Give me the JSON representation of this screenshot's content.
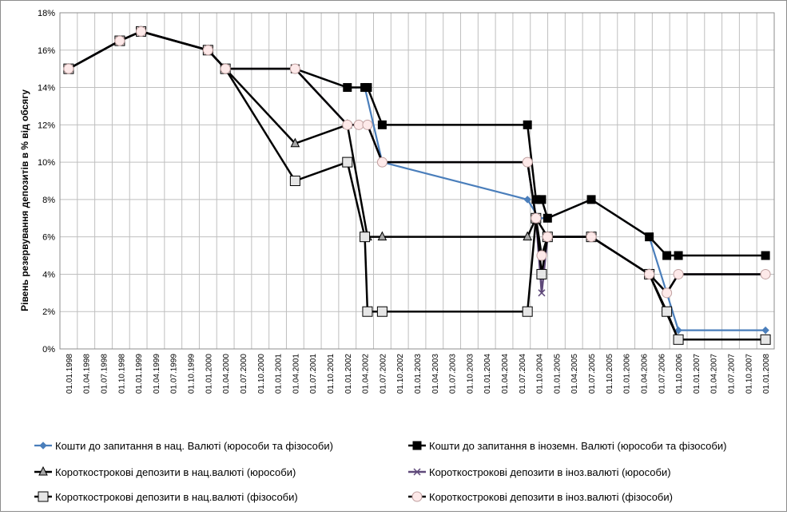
{
  "chart_data": {
    "type": "line",
    "ylabel": "Рівень резервування депозитів в % від обсягу",
    "ylim": [
      0,
      18
    ],
    "yticks": [
      "0%",
      "2%",
      "4%",
      "6%",
      "8%",
      "10%",
      "12%",
      "14%",
      "16%",
      "18%"
    ],
    "xticks": [
      "01.01.1998",
      "01.04.1998",
      "01.07.1998",
      "01.10.1998",
      "01.01.1999",
      "01.04.1999",
      "01.07.1999",
      "01.10.1999",
      "01.01.2000",
      "01.04.2000",
      "01.07.2000",
      "01.10.2000",
      "01.01.2001",
      "01.04.2001",
      "01.07.2001",
      "01.10.2001",
      "01.01.2002",
      "01.04.2002",
      "01.07.2002",
      "01.10.2002",
      "01.01.2003",
      "01.04.2003",
      "01.07.2003",
      "01.10.2003",
      "01.01.2004",
      "01.04.2004",
      "01.07.2004",
      "01.10.2004",
      "01.01.2005",
      "01.04.2005",
      "01.07.2005",
      "01.10.2005",
      "01.01.2006",
      "01.04.2006",
      "01.07.2006",
      "01.10.2006",
      "01.01.2007",
      "01.04.2007",
      "01.07.2007",
      "01.10.2007",
      "01.01.2008"
    ],
    "grid": true,
    "legend_position": "bottom",
    "series": [
      {
        "name": "Кошти до запитання в нац. Валюті (юрособи та фізособи)",
        "color": "#4a7ebb",
        "marker": "diamond",
        "points": [
          [
            "1998-01-01",
            15
          ],
          [
            "1998-09-25",
            16.5
          ],
          [
            "1999-01-15",
            17
          ],
          [
            "2000-01-01",
            16
          ],
          [
            "2000-04-01",
            15
          ],
          [
            "2001-04-01",
            15
          ],
          [
            "2002-01-01",
            14
          ],
          [
            "2002-04-01",
            14
          ],
          [
            "2002-07-01",
            10
          ],
          [
            "2004-08-01",
            8
          ],
          [
            "2004-10-01",
            7
          ],
          [
            "2004-11-15",
            7
          ],
          [
            "2005-07-01",
            8
          ],
          [
            "2006-05-01",
            6
          ],
          [
            "2006-10-01",
            1
          ],
          [
            "2008-01-01",
            1
          ]
        ]
      },
      {
        "name": "Кошти до запитання в іноземн. Валюті (юрособи та фізособи)",
        "color": "#000000",
        "marker": "square-filled",
        "points": [
          [
            "1998-01-01",
            15
          ],
          [
            "1998-09-25",
            16.5
          ],
          [
            "1999-01-15",
            17
          ],
          [
            "2000-01-01",
            16
          ],
          [
            "2000-04-01",
            15
          ],
          [
            "2001-04-01",
            15
          ],
          [
            "2002-01-01",
            14
          ],
          [
            "2002-04-01",
            14
          ],
          [
            "2002-04-15",
            14
          ],
          [
            "2002-07-01",
            12
          ],
          [
            "2004-08-01",
            12
          ],
          [
            "2004-09-15",
            8
          ],
          [
            "2004-10-15",
            8
          ],
          [
            "2004-11-15",
            7
          ],
          [
            "2005-07-01",
            8
          ],
          [
            "2006-05-01",
            6
          ],
          [
            "2006-08-01",
            5
          ],
          [
            "2006-10-01",
            5
          ],
          [
            "2008-01-01",
            5
          ]
        ]
      },
      {
        "name": "Короткострокові депозити в нац.валюті (юрособи)",
        "color": "#000000",
        "marker": "triangle",
        "points": [
          [
            "1998-01-01",
            15
          ],
          [
            "1998-09-25",
            16.5
          ],
          [
            "1999-01-15",
            17
          ],
          [
            "2000-01-01",
            16
          ],
          [
            "2000-04-01",
            15
          ],
          [
            "2001-04-01",
            11
          ],
          [
            "2002-01-01",
            12
          ],
          [
            "2002-04-15",
            6
          ],
          [
            "2002-07-01",
            6
          ],
          [
            "2004-08-01",
            6
          ],
          [
            "2004-09-15",
            7
          ],
          [
            "2004-11-15",
            6
          ],
          [
            "2005-07-01",
            6
          ],
          [
            "2006-05-01",
            4
          ],
          [
            "2006-10-01",
            0.5
          ],
          [
            "2008-01-01",
            0.5
          ]
        ]
      },
      {
        "name": "Короткострокові депозити в іноз.валюті (юрособи)",
        "color": "#5f497a",
        "marker": "x",
        "points": [
          [
            "1998-01-01",
            15
          ],
          [
            "1998-09-25",
            16.5
          ],
          [
            "1999-01-15",
            17
          ],
          [
            "2000-01-01",
            16
          ],
          [
            "2000-04-01",
            15
          ],
          [
            "2001-04-01",
            15
          ],
          [
            "2002-01-01",
            12
          ],
          [
            "2002-03-01",
            12
          ],
          [
            "2002-04-15",
            12
          ],
          [
            "2002-07-01",
            10
          ],
          [
            "2004-08-01",
            10
          ],
          [
            "2004-09-15",
            7
          ],
          [
            "2004-10-15",
            3
          ],
          [
            "2004-11-15",
            6
          ],
          [
            "2005-07-01",
            6
          ],
          [
            "2006-05-01",
            4
          ],
          [
            "2006-08-01",
            3
          ],
          [
            "2006-10-01",
            4
          ],
          [
            "2008-01-01",
            4
          ]
        ]
      },
      {
        "name": "Короткострокові депозити в нац.валюті (фізособи)",
        "color": "#000000",
        "marker": "square-open",
        "points": [
          [
            "1998-01-01",
            15
          ],
          [
            "1998-09-25",
            16.5
          ],
          [
            "1999-01-15",
            17
          ],
          [
            "2000-01-01",
            16
          ],
          [
            "2000-04-01",
            15
          ],
          [
            "2001-04-01",
            9
          ],
          [
            "2002-01-01",
            10
          ],
          [
            "2002-04-01",
            6
          ],
          [
            "2002-04-15",
            2
          ],
          [
            "2002-07-01",
            2
          ],
          [
            "2004-08-01",
            2
          ],
          [
            "2004-09-15",
            7
          ],
          [
            "2004-10-15",
            4
          ],
          [
            "2004-11-15",
            6
          ],
          [
            "2005-07-01",
            6
          ],
          [
            "2006-05-01",
            4
          ],
          [
            "2006-08-01",
            2
          ],
          [
            "2006-10-01",
            0.5
          ],
          [
            "2008-01-01",
            0.5
          ]
        ]
      },
      {
        "name": "Короткострокові депозити в іноз.валюті (фізособи)",
        "color": "#000000",
        "marker": "circle-open",
        "points": [
          [
            "1998-01-01",
            15
          ],
          [
            "1998-09-25",
            16.5
          ],
          [
            "1999-01-15",
            17
          ],
          [
            "2000-01-01",
            16
          ],
          [
            "2000-04-01",
            15
          ],
          [
            "2001-04-01",
            15
          ],
          [
            "2002-01-01",
            12
          ],
          [
            "2002-03-01",
            12
          ],
          [
            "2002-04-15",
            12
          ],
          [
            "2002-07-01",
            10
          ],
          [
            "2004-08-01",
            10
          ],
          [
            "2004-09-15",
            7
          ],
          [
            "2004-10-15",
            5
          ],
          [
            "2004-11-15",
            6
          ],
          [
            "2005-07-01",
            6
          ],
          [
            "2006-05-01",
            4
          ],
          [
            "2006-08-01",
            3
          ],
          [
            "2006-10-01",
            4
          ],
          [
            "2008-01-01",
            4
          ]
        ]
      }
    ]
  }
}
